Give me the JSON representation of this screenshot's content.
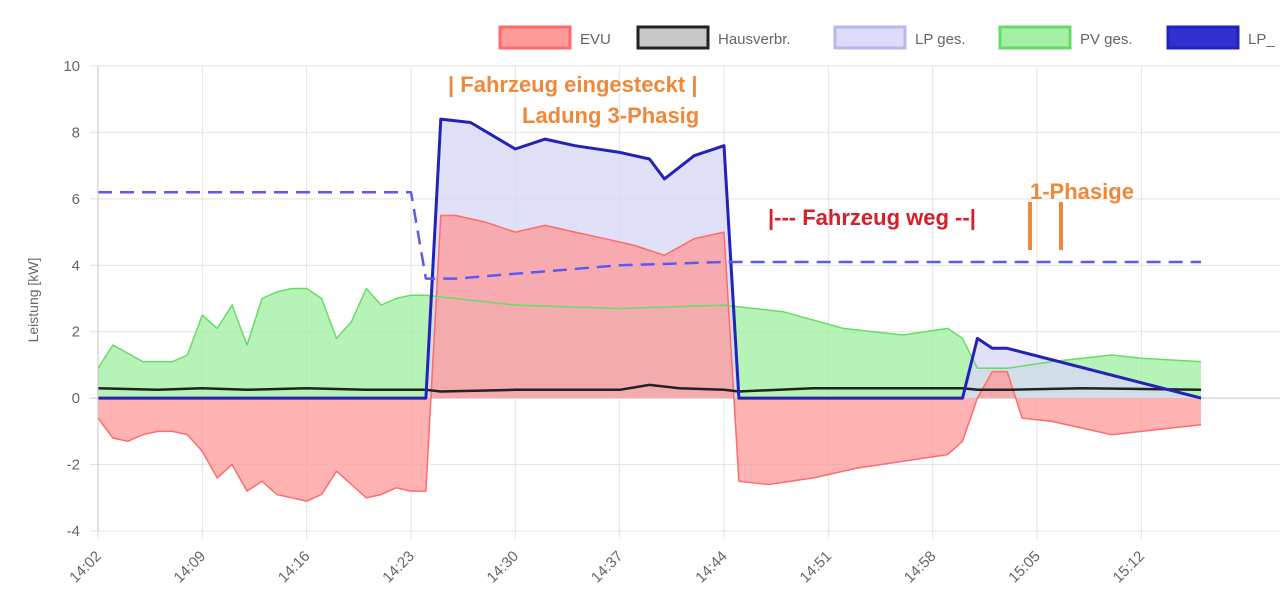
{
  "chart_data": {
    "type": "area",
    "ylabel": "Leistung [kW]",
    "ylim": [
      -4,
      10
    ],
    "y_ticks": [
      "10",
      "8",
      "6",
      "4",
      "2",
      "0",
      "-2",
      "-4"
    ],
    "x_ticks": [
      "14:02",
      "14:09",
      "14:16",
      "14:23",
      "14:30",
      "14:37",
      "14:44",
      "14:51",
      "14:58",
      "15:05",
      "15:12"
    ],
    "grid": true,
    "legend_position": "top-right",
    "legend": [
      {
        "name": "EVU",
        "fill": "#ff9a9a",
        "stroke": "#ff6b6b"
      },
      {
        "name": "Hausverbr.",
        "fill": "#c8c8c8",
        "stroke": "#222222"
      },
      {
        "name": "LP ges.",
        "fill": "#dcdcf8",
        "stroke": "#b8b8ec"
      },
      {
        "name": "PV ges.",
        "fill": "#a4f0a4",
        "stroke": "#66dd66"
      },
      {
        "name": "LP_",
        "fill": "#3030d0",
        "stroke": "#2323b8"
      }
    ],
    "series": [
      {
        "name": "EVU",
        "color": "#ff6b6b",
        "x": [
          "14:02",
          "14:03",
          "14:04",
          "14:05",
          "14:06",
          "14:07",
          "14:08",
          "14:09",
          "14:10",
          "14:11",
          "14:12",
          "14:13",
          "14:14",
          "14:15",
          "14:16",
          "14:17",
          "14:18",
          "14:19",
          "14:20",
          "14:21",
          "14:22",
          "14:23",
          "14:24",
          "14:25",
          "14:26",
          "14:28",
          "14:30",
          "14:32",
          "14:34",
          "14:36",
          "14:38",
          "14:40",
          "14:42",
          "14:44",
          "14:45",
          "14:47",
          "14:50",
          "14:53",
          "14:56",
          "14:59",
          "15:00",
          "15:01",
          "15:02",
          "15:03",
          "15:04",
          "15:06",
          "15:08",
          "15:10",
          "15:12",
          "15:14",
          "15:16"
        ],
        "values": [
          -0.6,
          -1.2,
          -1.3,
          -1.1,
          -1.0,
          -1.0,
          -1.1,
          -1.6,
          -2.4,
          -2.0,
          -2.8,
          -2.5,
          -2.9,
          -3.0,
          -3.1,
          -2.9,
          -2.2,
          -2.6,
          -3.0,
          -2.9,
          -2.7,
          -2.8,
          -2.8,
          5.5,
          5.5,
          5.3,
          5.0,
          5.2,
          5.0,
          4.8,
          4.6,
          4.3,
          4.8,
          5.0,
          -2.5,
          -2.6,
          -2.4,
          -2.1,
          -1.9,
          -1.7,
          -1.3,
          0.0,
          0.8,
          0.8,
          -0.6,
          -0.7,
          -0.9,
          -1.1,
          -1.0,
          -0.9,
          -0.8
        ]
      },
      {
        "name": "Hausverbr.",
        "color": "#222222",
        "x": [
          "14:02",
          "14:06",
          "14:09",
          "14:12",
          "14:16",
          "14:20",
          "14:24",
          "14:25",
          "14:30",
          "14:37",
          "14:39",
          "14:41",
          "14:44",
          "14:45",
          "14:50",
          "14:55",
          "15:00",
          "15:01",
          "15:02",
          "15:03",
          "15:08",
          "15:16"
        ],
        "values": [
          0.3,
          0.25,
          0.3,
          0.25,
          0.3,
          0.25,
          0.25,
          0.2,
          0.25,
          0.25,
          0.4,
          0.3,
          0.25,
          0.2,
          0.3,
          0.3,
          0.3,
          0.25,
          0.25,
          0.25,
          0.3,
          0.25
        ]
      },
      {
        "name": "LP ges.",
        "color": "#b8b8ec",
        "x": [
          "14:02",
          "14:24",
          "14:25",
          "14:27",
          "14:30",
          "14:32",
          "14:34",
          "14:37",
          "14:39",
          "14:40",
          "14:42",
          "14:44",
          "14:45",
          "15:00",
          "15:01",
          "15:02",
          "15:03",
          "15:16"
        ],
        "values": [
          0,
          0,
          8.4,
          8.3,
          7.5,
          7.8,
          7.6,
          7.4,
          7.2,
          6.6,
          7.3,
          7.6,
          0,
          0,
          1.8,
          1.5,
          1.5,
          0
        ]
      },
      {
        "name": "PV ges.",
        "color": "#66dd66",
        "x": [
          "14:02",
          "14:03",
          "14:05",
          "14:07",
          "14:08",
          "14:09",
          "14:10",
          "14:11",
          "14:12",
          "14:13",
          "14:14",
          "14:15",
          "14:16",
          "14:17",
          "14:18",
          "14:19",
          "14:20",
          "14:21",
          "14:22",
          "14:23",
          "14:24",
          "14:30",
          "14:37",
          "14:44",
          "14:48",
          "14:52",
          "14:56",
          "14:59",
          "15:00",
          "15:01",
          "15:03",
          "15:06",
          "15:10",
          "15:12",
          "15:16"
        ],
        "values": [
          0.9,
          1.6,
          1.1,
          1.1,
          1.3,
          2.5,
          2.1,
          2.8,
          1.6,
          3.0,
          3.2,
          3.3,
          3.3,
          3.0,
          1.8,
          2.3,
          3.3,
          2.8,
          3.0,
          3.1,
          3.1,
          2.8,
          2.7,
          2.8,
          2.6,
          2.1,
          1.9,
          2.1,
          1.8,
          0.9,
          0.9,
          1.1,
          1.3,
          1.2,
          1.1
        ]
      },
      {
        "name": "LP_",
        "color": "#2323b8",
        "x": [
          "14:02",
          "14:24",
          "14:25",
          "14:27",
          "14:30",
          "14:32",
          "14:34",
          "14:37",
          "14:39",
          "14:40",
          "14:42",
          "14:44",
          "14:45",
          "15:00",
          "15:01",
          "15:02",
          "15:03",
          "15:16"
        ],
        "values": [
          0,
          0,
          8.4,
          8.3,
          7.5,
          7.8,
          7.6,
          7.4,
          7.2,
          6.6,
          7.3,
          7.6,
          0,
          0,
          1.8,
          1.5,
          1.5,
          0
        ]
      },
      {
        "name": "",
        "color": "#5a5af0",
        "dashed": true,
        "x": [
          "14:02",
          "14:23",
          "14:24",
          "14:26",
          "14:37",
          "14:44",
          "15:16"
        ],
        "values": [
          6.2,
          6.2,
          3.6,
          3.6,
          4.0,
          4.1,
          4.1
        ]
      }
    ],
    "annotations": [
      {
        "text": "| Fahrzeug eingesteckt  |",
        "color": "#f0883a"
      },
      {
        "text": "Ladung 3-Phasig",
        "color": "#f0883a"
      },
      {
        "text": "|--- Fahrzeug weg --|",
        "color": "#d4202a"
      },
      {
        "text": "1-Phasige",
        "color": "#f0883a"
      }
    ]
  }
}
